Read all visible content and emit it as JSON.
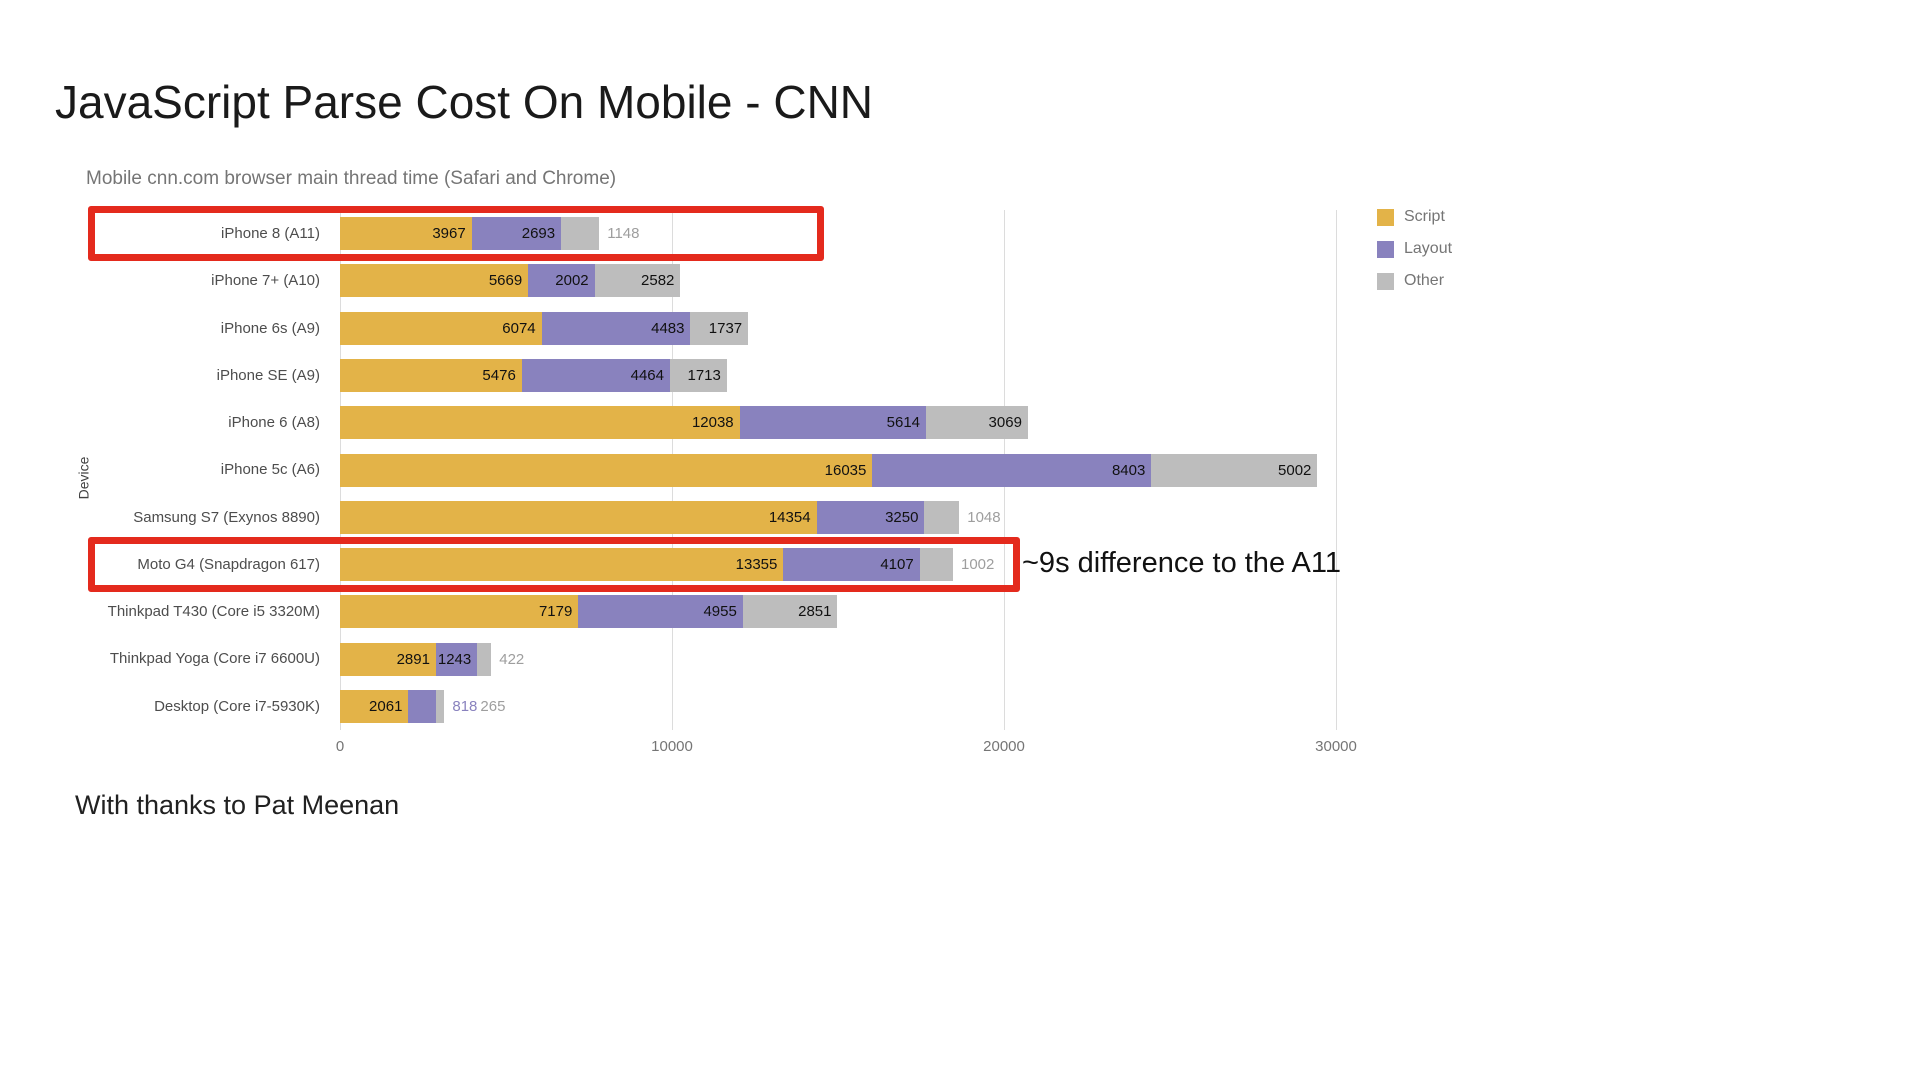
{
  "page": {
    "title": "JavaScript Parse Cost On Mobile - CNN",
    "annotation": "~9s difference to the A11",
    "footer": "With thanks to Pat Meenan",
    "highlight_color": "#e42a1d"
  },
  "chart_data": {
    "type": "bar",
    "orientation": "horizontal",
    "stacked": true,
    "title": "Mobile cnn.com browser main thread time (Safari and Chrome)",
    "xlabel": "",
    "ylabel": "Device",
    "xlim": [
      0,
      33700
    ],
    "xticks": [
      0,
      10000,
      20000,
      30000
    ],
    "grid": true,
    "legend_position": "top-right",
    "categories": [
      "iPhone 8 (A11)",
      "iPhone 7+ (A10)",
      "iPhone 6s (A9)",
      "iPhone SE (A9)",
      "iPhone 6 (A8)",
      "iPhone 5c (A6)",
      "Samsung S7 (Exynos 8890)",
      "Moto G4 (Snapdragon 617)",
      "Thinkpad T430 (Core i5 3320M)",
      "Thinkpad Yoga (Core i7 6600U)",
      "Desktop (Core i7-5930K)"
    ],
    "series": [
      {
        "name": "Script",
        "color": "#e3b348",
        "outside_label_color": "#9e9e9e",
        "values": [
          3967,
          5669,
          6074,
          5476,
          12038,
          16035,
          14354,
          13355,
          7179,
          2891,
          2061
        ]
      },
      {
        "name": "Layout",
        "color": "#8982be",
        "outside_label_color": "#8982be",
        "values": [
          2693,
          2002,
          4483,
          4464,
          5614,
          8403,
          3250,
          4107,
          4955,
          1243,
          818
        ]
      },
      {
        "name": "Other",
        "color": "#bdbdbd",
        "outside_label_color": "#9e9e9e",
        "values": [
          1148,
          2582,
          1737,
          1713,
          3069,
          5002,
          1048,
          1002,
          2851,
          422,
          265
        ]
      }
    ],
    "highlighted_rows": [
      "iPhone 8 (A11)",
      "Moto G4 (Snapdragon 617)"
    ]
  }
}
